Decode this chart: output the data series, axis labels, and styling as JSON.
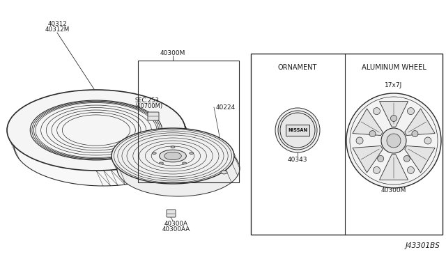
{
  "bg_color": "#ffffff",
  "line_color": "#2a2a2a",
  "diagram_code": "J43301BS",
  "ornament_label": "ORNAMENT",
  "aluminum_wheel_label": "ALUMINUM WHEEL",
  "wheel_size_label": "17x7J",
  "part_labels": {
    "tire_line1": "40312",
    "tire_line2": "40312M",
    "wheel_top": "40300M",
    "sec_line1": "SEC.253",
    "sec_line2": "(40700M)",
    "valve_top": "40224",
    "wheel_bottom1": "40300A",
    "wheel_bottom2": "40300AA",
    "ornament": "40343",
    "alum_wheel": "40300M"
  }
}
